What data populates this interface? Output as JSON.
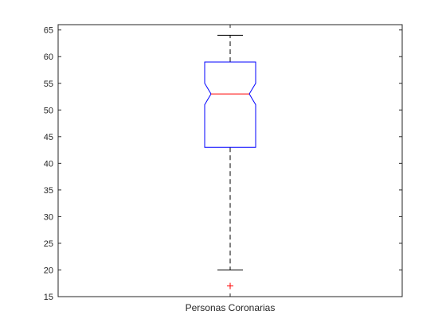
{
  "chart_data": {
    "type": "boxplot",
    "title": "",
    "xlabel": "",
    "ylabel": "",
    "categories": [
      "Personas Coronarias"
    ],
    "ylim": [
      15,
      66
    ],
    "yticks": [
      15,
      20,
      25,
      30,
      35,
      40,
      45,
      50,
      55,
      60,
      65
    ],
    "grid": false,
    "notched": true,
    "boxes": [
      {
        "category": "Personas Coronarias",
        "whisker_low": 20,
        "q1": 43,
        "notch_low": 51,
        "median": 53,
        "notch_high": 55,
        "q3": 59,
        "whisker_high": 64,
        "outliers": [
          17
        ]
      }
    ],
    "colors": {
      "box": "#0000ff",
      "median": "#ff0000",
      "whisker": "#000000",
      "outlier": "#ff0000",
      "axes": "#262626",
      "background": "#ffffff"
    }
  }
}
